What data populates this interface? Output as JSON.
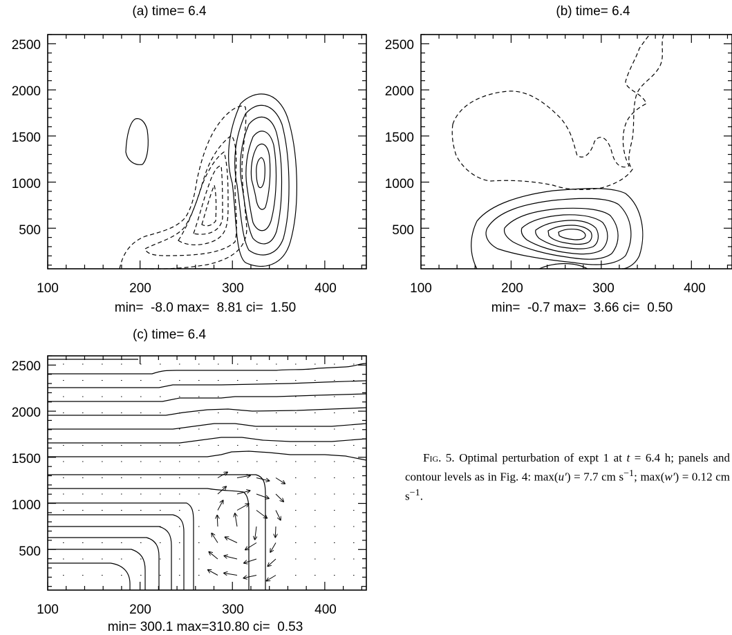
{
  "figure": {
    "panels": [
      {
        "id": "a",
        "title": "(a) time= 6.4",
        "stats": "min=  -8.0 max=  8.81 ci=  1.50",
        "xticks": [
          "100",
          "200",
          "300",
          "400"
        ],
        "yticks": [
          "2500",
          "2000",
          "1500",
          "1000",
          "500"
        ]
      },
      {
        "id": "b",
        "title": "(b) time= 6.4",
        "stats": "min=  -0.7 max=  3.66 ci=  0.50",
        "xticks": [
          "100",
          "200",
          "300",
          "400"
        ],
        "yticks": [
          "2500",
          "2000",
          "1500",
          "1000",
          "500"
        ]
      },
      {
        "id": "c",
        "title": "(c) time= 6.4",
        "stats": "min= 300.1 max=310.80 ci=  0.53",
        "xticks": [
          "100",
          "200",
          "300",
          "400"
        ],
        "yticks": [
          "2500",
          "2000",
          "1500",
          "1000",
          "500"
        ]
      }
    ]
  },
  "caption": {
    "label": "Fig. 5.",
    "text_1": " Optimal perturbation of expt 1 at ",
    "t_var": "t",
    "text_2": " = 6.4 h; panels and contour levels as in Fig. 4: max(",
    "u_var": "u′",
    "text_3": ") = 7.7 cm s",
    "sup_1": "−1",
    "text_4": "; max(",
    "w_var": "w′",
    "text_5": ") = 0.12 cm s",
    "sup_2": "−1",
    "text_6": "."
  },
  "chart_data": [
    {
      "type": "contour",
      "panel": "a",
      "xlim": [
        100,
        445
      ],
      "ylim": [
        60,
        2600
      ],
      "x_ticks": [
        100,
        200,
        300,
        400
      ],
      "y_ticks": [
        500,
        1000,
        1500,
        2000,
        2500
      ],
      "contour_min": -8.0,
      "contour_max": 8.81,
      "contour_interval": 1.5,
      "negative_contours": "dashed",
      "positive_contours": "solid"
    },
    {
      "type": "contour",
      "panel": "b",
      "xlim": [
        100,
        445
      ],
      "ylim": [
        60,
        2600
      ],
      "x_ticks": [
        100,
        200,
        300,
        400
      ],
      "y_ticks": [
        500,
        1000,
        1500,
        2000,
        2500
      ],
      "contour_min": -0.7,
      "contour_max": 3.66,
      "contour_interval": 0.5,
      "negative_contours": "dashed",
      "positive_contours": "solid"
    },
    {
      "type": "contour",
      "panel": "c",
      "xlim": [
        100,
        445
      ],
      "ylim": [
        60,
        2600
      ],
      "x_ticks": [
        100,
        200,
        300,
        400
      ],
      "y_ticks": [
        500,
        1000,
        1500,
        2000,
        2500
      ],
      "contour_min": 300.1,
      "contour_max": 310.8,
      "contour_interval": 0.53,
      "overlay": "vector field (arrows)"
    }
  ]
}
